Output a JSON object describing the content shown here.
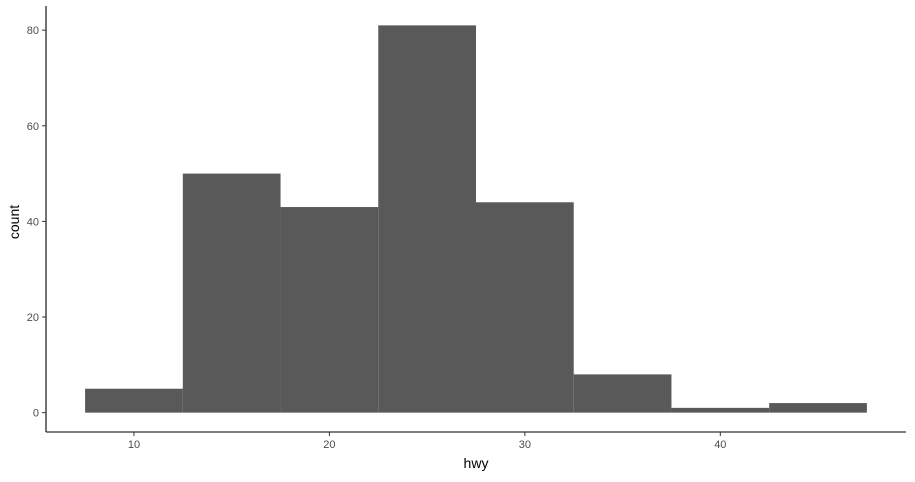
{
  "chart_data": {
    "type": "bar",
    "subtype": "histogram",
    "title": "",
    "xlabel": "hwy",
    "ylabel": "count",
    "bins": [
      {
        "x0": 7.5,
        "x1": 12.5,
        "count": 5
      },
      {
        "x0": 12.5,
        "x1": 17.5,
        "count": 50
      },
      {
        "x0": 17.5,
        "x1": 22.5,
        "count": 43
      },
      {
        "x0": 22.5,
        "x1": 27.5,
        "count": 81
      },
      {
        "x0": 27.5,
        "x1": 32.5,
        "count": 44
      },
      {
        "x0": 32.5,
        "x1": 37.5,
        "count": 8
      },
      {
        "x0": 37.5,
        "x1": 42.5,
        "count": 1
      },
      {
        "x0": 42.5,
        "x1": 47.5,
        "count": 2
      }
    ],
    "x_ticks": [
      10,
      20,
      30,
      40
    ],
    "y_ticks": [
      0,
      20,
      40,
      60,
      80
    ],
    "xlim": [
      5.5,
      49.5
    ],
    "ylim": [
      -4.05,
      85.05
    ],
    "grid": false,
    "bar_color": "#595959",
    "axis_color": "#000000",
    "tick_label_color": "#4d4d4d"
  }
}
